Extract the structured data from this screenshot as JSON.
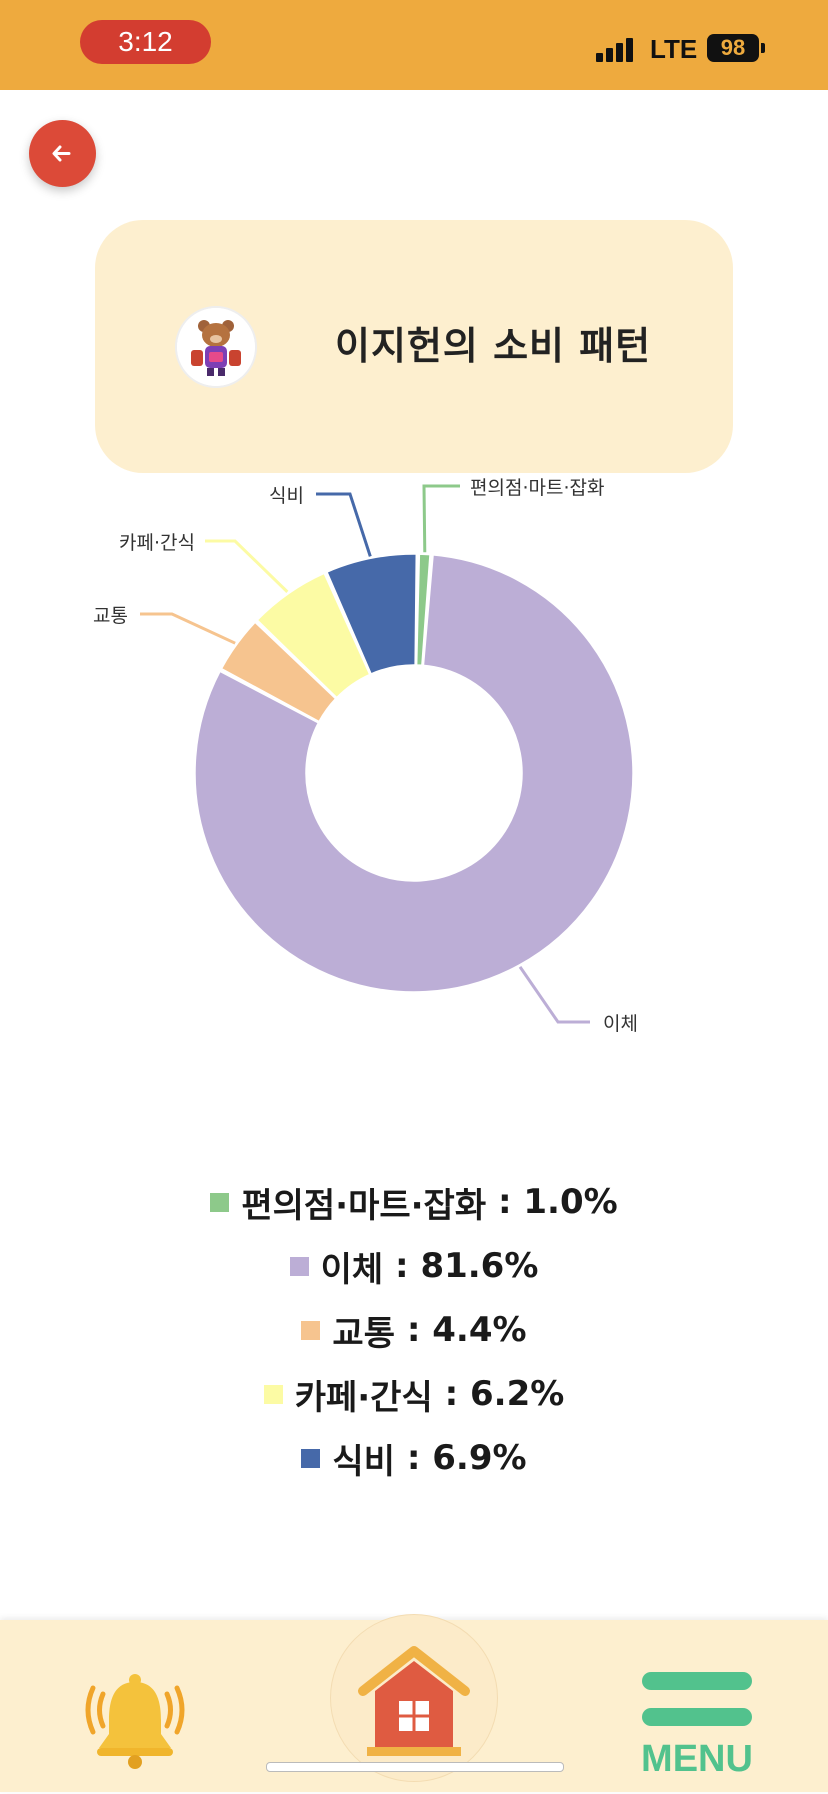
{
  "status_bar": {
    "time": "3:12",
    "network": "LTE",
    "battery": "98"
  },
  "header": {
    "back_icon": "arrow-left-icon"
  },
  "title_card": {
    "title": "이지헌의 소비 패턴"
  },
  "colors": {
    "status_bar": "#eeaa3e",
    "back_button": "#dc4a38",
    "card": "#fdefcf",
    "menu": "#52c28d"
  },
  "chart_data": {
    "type": "pie",
    "donut": true,
    "series": [
      {
        "name": "편의점·마트·잡화",
        "value": 1.0,
        "color": "#8dc98a"
      },
      {
        "name": "이체",
        "value": 81.6,
        "color": "#bcaed6"
      },
      {
        "name": "교통",
        "value": 4.4,
        "color": "#f6c48f"
      },
      {
        "name": "카페·간식",
        "value": 6.2,
        "color": "#fcfba4"
      },
      {
        "name": "식비",
        "value": 6.9,
        "color": "#4669a9"
      }
    ]
  },
  "legend": [
    {
      "label": "편의점·마트·잡화",
      "value": "1.0%"
    },
    {
      "label": "이체",
      "value": "81.6%"
    },
    {
      "label": "교통",
      "value": "4.4%"
    },
    {
      "label": "카페·간식",
      "value": "6.2%"
    },
    {
      "label": "식비",
      "value": "6.9%"
    }
  ],
  "bottom_nav": {
    "bell_icon": "bell-icon",
    "home_icon": "home-icon",
    "menu_label": "MENU"
  }
}
